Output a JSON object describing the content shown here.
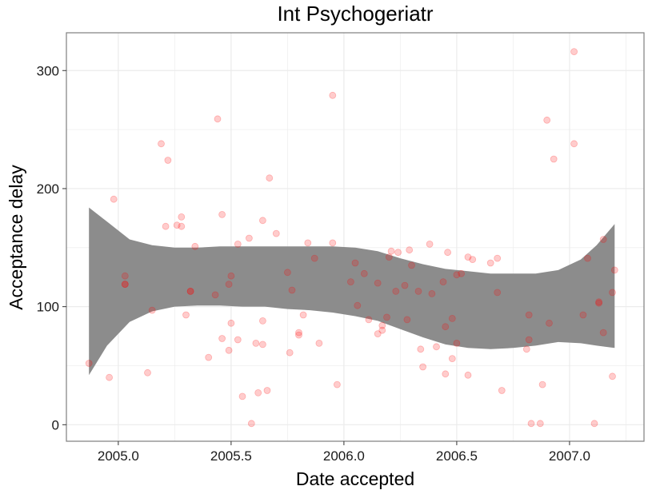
{
  "chart_data": {
    "type": "scatter",
    "title": "Int Psychogeriatr",
    "xlabel": "Date accepted",
    "ylabel": "Acceptance delay",
    "xlim": [
      2004.77,
      2007.33
    ],
    "ylim": [
      -14,
      332
    ],
    "x_ticks": [
      2005.0,
      2005.5,
      2006.0,
      2006.5,
      2007.0
    ],
    "x_tick_labels": [
      "2005.0",
      "2005.5",
      "2006.0",
      "2006.5",
      "2007.0"
    ],
    "y_ticks": [
      0,
      100,
      200,
      300
    ],
    "y_tick_labels": [
      "0",
      "100",
      "200",
      "300"
    ],
    "grid": true,
    "legend": "none",
    "colors": {
      "points": "#ff0000",
      "band": "#8c8c8c",
      "grid": "#ebebeb",
      "panel_border": "#7f7f7f"
    },
    "points": [
      {
        "x": 2004.87,
        "y": 52
      },
      {
        "x": 2004.96,
        "y": 40
      },
      {
        "x": 2004.98,
        "y": 191
      },
      {
        "x": 2005.03,
        "y": 126
      },
      {
        "x": 2005.03,
        "y": 119
      },
      {
        "x": 2005.03,
        "y": 119
      },
      {
        "x": 2005.13,
        "y": 44
      },
      {
        "x": 2005.15,
        "y": 97
      },
      {
        "x": 2005.19,
        "y": 238
      },
      {
        "x": 2005.21,
        "y": 168
      },
      {
        "x": 2005.22,
        "y": 224
      },
      {
        "x": 2005.26,
        "y": 169
      },
      {
        "x": 2005.28,
        "y": 168
      },
      {
        "x": 2005.28,
        "y": 176
      },
      {
        "x": 2005.3,
        "y": 93
      },
      {
        "x": 2005.32,
        "y": 113
      },
      {
        "x": 2005.32,
        "y": 113
      },
      {
        "x": 2005.34,
        "y": 151
      },
      {
        "x": 2005.4,
        "y": 57
      },
      {
        "x": 2005.43,
        "y": 110
      },
      {
        "x": 2005.44,
        "y": 259
      },
      {
        "x": 2005.46,
        "y": 178
      },
      {
        "x": 2005.46,
        "y": 73
      },
      {
        "x": 2005.49,
        "y": 119
      },
      {
        "x": 2005.49,
        "y": 63
      },
      {
        "x": 2005.5,
        "y": 126
      },
      {
        "x": 2005.5,
        "y": 86
      },
      {
        "x": 2005.53,
        "y": 153
      },
      {
        "x": 2005.53,
        "y": 72
      },
      {
        "x": 2005.55,
        "y": 24
      },
      {
        "x": 2005.58,
        "y": 158
      },
      {
        "x": 2005.59,
        "y": 1
      },
      {
        "x": 2005.61,
        "y": 69
      },
      {
        "x": 2005.62,
        "y": 27
      },
      {
        "x": 2005.64,
        "y": 173
      },
      {
        "x": 2005.64,
        "y": 88
      },
      {
        "x": 2005.64,
        "y": 68
      },
      {
        "x": 2005.66,
        "y": 29
      },
      {
        "x": 2005.67,
        "y": 209
      },
      {
        "x": 2005.7,
        "y": 162
      },
      {
        "x": 2005.75,
        "y": 129
      },
      {
        "x": 2005.76,
        "y": 61
      },
      {
        "x": 2005.77,
        "y": 114
      },
      {
        "x": 2005.8,
        "y": 78
      },
      {
        "x": 2005.8,
        "y": 76
      },
      {
        "x": 2005.82,
        "y": 93
      },
      {
        "x": 2005.84,
        "y": 154
      },
      {
        "x": 2005.87,
        "y": 141
      },
      {
        "x": 2005.89,
        "y": 69
      },
      {
        "x": 2005.95,
        "y": 154
      },
      {
        "x": 2005.95,
        "y": 279
      },
      {
        "x": 2005.97,
        "y": 34
      },
      {
        "x": 2006.03,
        "y": 121
      },
      {
        "x": 2006.05,
        "y": 137
      },
      {
        "x": 2006.06,
        "y": 101
      },
      {
        "x": 2006.09,
        "y": 128
      },
      {
        "x": 2006.11,
        "y": 89
      },
      {
        "x": 2006.15,
        "y": 120
      },
      {
        "x": 2006.15,
        "y": 77
      },
      {
        "x": 2006.17,
        "y": 80
      },
      {
        "x": 2006.17,
        "y": 84
      },
      {
        "x": 2006.19,
        "y": 91
      },
      {
        "x": 2006.2,
        "y": 142
      },
      {
        "x": 2006.21,
        "y": 147
      },
      {
        "x": 2006.23,
        "y": 113
      },
      {
        "x": 2006.24,
        "y": 146
      },
      {
        "x": 2006.27,
        "y": 118
      },
      {
        "x": 2006.28,
        "y": 89
      },
      {
        "x": 2006.29,
        "y": 148
      },
      {
        "x": 2006.3,
        "y": 135
      },
      {
        "x": 2006.33,
        "y": 113
      },
      {
        "x": 2006.34,
        "y": 64
      },
      {
        "x": 2006.35,
        "y": 49
      },
      {
        "x": 2006.38,
        "y": 153
      },
      {
        "x": 2006.39,
        "y": 111
      },
      {
        "x": 2006.41,
        "y": 66
      },
      {
        "x": 2006.44,
        "y": 121
      },
      {
        "x": 2006.45,
        "y": 83
      },
      {
        "x": 2006.45,
        "y": 43
      },
      {
        "x": 2006.46,
        "y": 146
      },
      {
        "x": 2006.48,
        "y": 90
      },
      {
        "x": 2006.48,
        "y": 56
      },
      {
        "x": 2006.5,
        "y": 127
      },
      {
        "x": 2006.5,
        "y": 69
      },
      {
        "x": 2006.52,
        "y": 128
      },
      {
        "x": 2006.55,
        "y": 142
      },
      {
        "x": 2006.55,
        "y": 42
      },
      {
        "x": 2006.57,
        "y": 140
      },
      {
        "x": 2006.65,
        "y": 137
      },
      {
        "x": 2006.68,
        "y": 141
      },
      {
        "x": 2006.68,
        "y": 112
      },
      {
        "x": 2006.7,
        "y": 29
      },
      {
        "x": 2006.81,
        "y": 64
      },
      {
        "x": 2006.82,
        "y": 93
      },
      {
        "x": 2006.82,
        "y": 72
      },
      {
        "x": 2006.83,
        "y": 1
      },
      {
        "x": 2006.87,
        "y": 1
      },
      {
        "x": 2006.88,
        "y": 34
      },
      {
        "x": 2006.9,
        "y": 258
      },
      {
        "x": 2006.91,
        "y": 86
      },
      {
        "x": 2006.93,
        "y": 225
      },
      {
        "x": 2007.02,
        "y": 238
      },
      {
        "x": 2007.02,
        "y": 316
      },
      {
        "x": 2007.06,
        "y": 93
      },
      {
        "x": 2007.08,
        "y": 141
      },
      {
        "x": 2007.11,
        "y": 1
      },
      {
        "x": 2007.13,
        "y": 103
      },
      {
        "x": 2007.13,
        "y": 104
      },
      {
        "x": 2007.15,
        "y": 157
      },
      {
        "x": 2007.15,
        "y": 78
      },
      {
        "x": 2007.19,
        "y": 112
      },
      {
        "x": 2007.19,
        "y": 41
      },
      {
        "x": 2007.2,
        "y": 131
      }
    ],
    "smooth_band": {
      "x": [
        2004.87,
        2004.95,
        2005.05,
        2005.15,
        2005.25,
        2005.35,
        2005.45,
        2005.55,
        2005.65,
        2005.75,
        2005.85,
        2005.95,
        2006.05,
        2006.15,
        2006.25,
        2006.35,
        2006.45,
        2006.55,
        2006.65,
        2006.75,
        2006.85,
        2006.95,
        2007.05,
        2007.12,
        2007.2
      ],
      "upper": [
        184,
        172,
        157,
        152,
        150,
        150,
        151,
        151,
        151,
        151,
        151,
        151,
        150,
        147,
        141,
        136,
        132,
        130,
        128,
        128,
        128,
        131,
        140,
        152,
        170
      ],
      "lower": [
        42,
        67,
        87,
        96,
        100,
        101,
        101,
        100,
        100,
        98,
        97,
        95,
        92,
        88,
        81,
        74,
        68,
        65,
        64,
        65,
        67,
        70,
        69,
        67,
        65
      ]
    }
  }
}
